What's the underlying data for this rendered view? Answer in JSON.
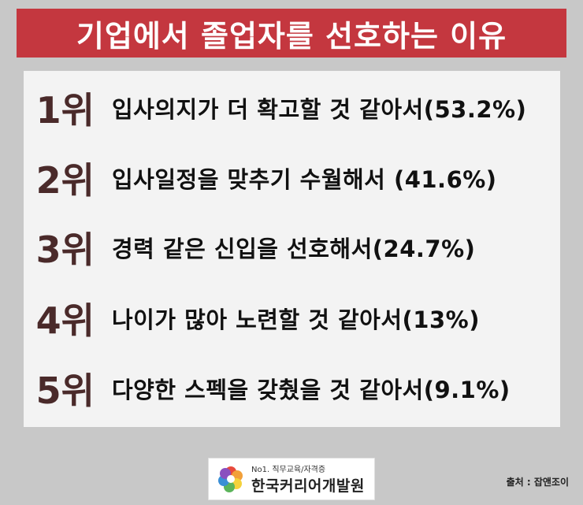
{
  "title": "기업에서 졸업자를 선호하는 이유",
  "items": [
    {
      "rank": "1위",
      "text": "입사의지가 더 확고할 것 같아서(53.2%)"
    },
    {
      "rank": "2위",
      "text": "입사일정을 맞추기 수월해서 (41.6%)"
    },
    {
      "rank": "3위",
      "text": "경력 같은 신입을 선호해서(24.7%)"
    },
    {
      "rank": "4위",
      "text": "나이가 많아 노련할 것 같아서(13%)"
    },
    {
      "rank": "5위",
      "text": "다양한 스펙을 갖췄을 것 같아서(9.1%)"
    }
  ],
  "logo": {
    "subtitle": "No1. 직무교육/자격증",
    "name": "한국커리어개발원"
  },
  "source": "출처 : 잡앤조이",
  "colors": {
    "background": "#c8c8c8",
    "title_bar": "#c4373f",
    "panel": "#f3f3f3",
    "rank": "#4a2a2a"
  }
}
